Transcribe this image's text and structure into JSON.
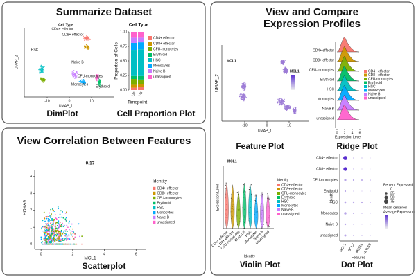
{
  "identities": [
    {
      "name": "CD4+ effector",
      "color": "#F8766D"
    },
    {
      "name": "CD8+ effector",
      "color": "#CD9600"
    },
    {
      "name": "CFU-monocytes",
      "color": "#7CAE00"
    },
    {
      "name": "Erythroid",
      "color": "#00BE67"
    },
    {
      "name": "HSC",
      "color": "#00BFC4"
    },
    {
      "name": "Monocytes",
      "color": "#00A9FF"
    },
    {
      "name": "Naive B",
      "color": "#C77CFF"
    },
    {
      "name": "unassigned",
      "color": "#FF61CC"
    }
  ],
  "legend_title": "Identity",
  "summary": {
    "title": "Summarize Dataset",
    "dimplot": {
      "caption": "DimPlot",
      "title": "Cell Type",
      "xlabel": "UMAP_1",
      "ylabel": "UMAP_2",
      "xticks": [
        -10,
        0,
        10
      ],
      "cluster_labels": [
        "CD4+ effector",
        "CD8+ effector",
        "Erythroid",
        "HSC",
        "Naive B",
        "Monocytes",
        "CFU-monocytes"
      ]
    },
    "proportion": {
      "caption": "Cell Proportion Plot",
      "type": "bar",
      "title": "Cell Type",
      "ylabel": "Proportion of Cells",
      "xlabel": "Timepoint",
      "categories": [
        "D0",
        "D8"
      ],
      "ylim": [
        0,
        1
      ],
      "yticks": [
        {
          "value": 0,
          "label": "0.00"
        },
        {
          "value": 0.25,
          "label": "0.25"
        },
        {
          "value": 0.5,
          "label": "0.50"
        },
        {
          "value": 0.75,
          "label": "0.75"
        },
        {
          "value": 1,
          "label": "1.00"
        }
      ],
      "series": [
        {
          "name": "CD4+ effector",
          "color": "#F8766D",
          "values": [
            0.04,
            0.05
          ]
        },
        {
          "name": "CD8+ effector",
          "color": "#CD9600",
          "values": [
            0.05,
            0.05
          ]
        },
        {
          "name": "CFU-monocytes",
          "color": "#7CAE00",
          "values": [
            0.1,
            0.08
          ]
        },
        {
          "name": "Erythroid",
          "color": "#00BE67",
          "values": [
            0.05,
            0.06
          ]
        },
        {
          "name": "HSC",
          "color": "#00BFC4",
          "values": [
            0.45,
            0.46
          ]
        },
        {
          "name": "Monocytes",
          "color": "#00A9FF",
          "values": [
            0.12,
            0.12
          ]
        },
        {
          "name": "Naive B",
          "color": "#C77CFF",
          "values": [
            0.09,
            0.08
          ]
        },
        {
          "name": "unassigned",
          "color": "#FF61CC",
          "values": [
            0.1,
            0.1
          ]
        }
      ]
    }
  },
  "correlation": {
    "title": "View Correlation Between Features",
    "caption": "Scatterplot",
    "type": "scatter",
    "title2": "0.17",
    "xlabel": "MCL1",
    "ylabel": "HOXA9",
    "xlim": [
      -0.4,
      6.6
    ],
    "ylim": [
      -0.3,
      4.4
    ],
    "xticks": [
      0,
      2,
      4,
      6
    ],
    "yticks": [
      0,
      1,
      2,
      3,
      4
    ]
  },
  "profiles": {
    "title_lines": [
      "View and Compare",
      "Expression Profiles"
    ],
    "feature": {
      "caption": "Feature Plot",
      "title": "MCL1",
      "xlabel": "UMAP_1",
      "ylabel": "UMAP_2",
      "xticks": [
        -10,
        0,
        10
      ],
      "legend_title": "MCL1"
    },
    "ridge": {
      "caption": "Ridge Plot",
      "xlabel": "Expression Level",
      "xticks": [
        0,
        2,
        4,
        6
      ]
    },
    "violin": {
      "caption": "Violin Plot",
      "title": "MCL1",
      "ylabel": "Expression Level",
      "xlabel": "Identity"
    },
    "dot": {
      "caption": "Dot Plot",
      "ylabel": "Identity",
      "xlabel": "Features",
      "features": [
        "MCL1",
        "BCL2",
        "MEIS1",
        "HOXA9"
      ],
      "size_title": "Percent Expressed",
      "sizes": [
        0,
        25,
        50,
        75
      ],
      "color_title_lines": [
        "Mean-centered",
        "Average Expression"
      ],
      "pct": [
        [
          70,
          5,
          3,
          2
        ],
        [
          60,
          4,
          2,
          1
        ],
        [
          20,
          10,
          8,
          5
        ],
        [
          10,
          3,
          2,
          2
        ],
        [
          15,
          12,
          10,
          6
        ],
        [
          25,
          8,
          4,
          3
        ],
        [
          12,
          4,
          2,
          2
        ],
        [
          18,
          6,
          4,
          3
        ]
      ]
    }
  }
}
